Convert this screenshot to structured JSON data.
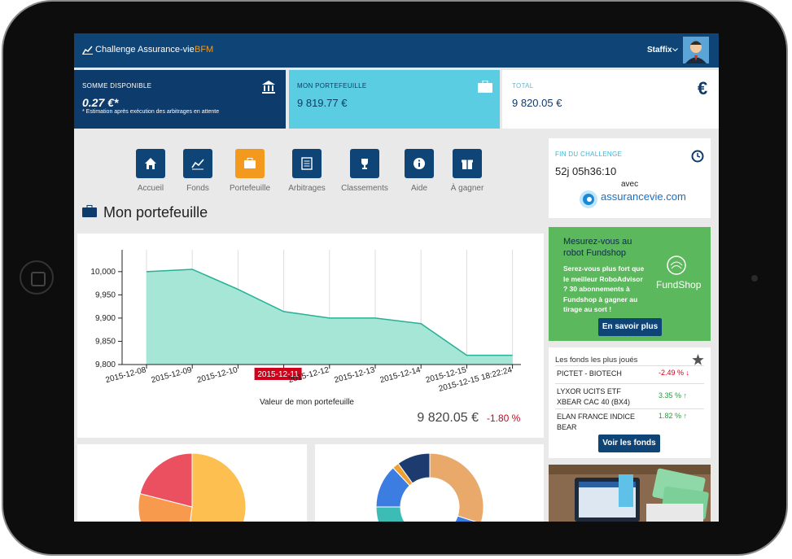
{
  "header": {
    "title": "Challenge Assurance-vie",
    "brand": "BFM",
    "user": "Staffix"
  },
  "summary": [
    {
      "label": "SOMME DISPONIBLE",
      "value": "0.27 €*",
      "note": "* Estimation après exécution des arbitrages en attente"
    },
    {
      "label": "MON PORTEFEUILLE",
      "value": "9 819.77 €"
    },
    {
      "label": "TOTAL",
      "value": "9 820.05 €",
      "symbol": "€"
    }
  ],
  "nav": [
    "Accueil",
    "Fonds",
    "Portefeuille",
    "Arbitrages",
    "Classements",
    "Aide",
    "À gagner"
  ],
  "section_title": "Mon portefeuille",
  "portfolio_chart": {
    "type": "area",
    "categories": [
      "2015-12-08",
      "2015-12-09",
      "2015-12-10",
      "2015-12-11",
      "2015-12-12",
      "2015-12-13",
      "2015-12-14",
      "2015-12-15",
      "2015-12-15 18:22:24"
    ],
    "values": [
      10000,
      10005,
      9962,
      9914,
      9900,
      9900,
      9888,
      9820,
      9820
    ],
    "ylim": [
      9800,
      10040
    ],
    "yticks": [
      {
        "value": 9800,
        "label": "9,800"
      },
      {
        "value": 9850,
        "label": "9,850"
      },
      {
        "value": 9900,
        "label": "9,900"
      },
      {
        "value": 9950,
        "label": "9,950"
      },
      {
        "value": 10000,
        "label": "10,000"
      }
    ],
    "highlight": 3,
    "color": "#a6e6d6",
    "line_color": "#26b096",
    "caption": "Valeur de mon portefeuille",
    "total": "9 820.05 €",
    "change": "-1.80 %"
  },
  "pie_charts": [
    {
      "type": "pie",
      "values": [
        52,
        27,
        21
      ],
      "colors": [
        "#fdbf4f",
        "#f79a4d",
        "#ea5060"
      ]
    },
    {
      "type": "donut",
      "values": [
        30,
        12,
        33,
        13,
        2,
        10
      ],
      "colors": [
        "#e8a96b",
        "#3b7de0",
        "#3dbcb6",
        "#3b7de0",
        "#f0a030",
        "#1d3b6e"
      ]
    }
  ],
  "sidebar": {
    "countdown": {
      "label": "FIN DU CHALLENGE",
      "value": "52j 05h36:10",
      "with": "avec",
      "partner": "assurancevie.com"
    },
    "promo": {
      "title": "Mesurez-vous au robot Fundshop",
      "text": "Serez-vous plus fort que le meilleur RoboAdvisor ? 30 abonnements à Fundshop à gagner au tirage au sort !",
      "logo": "FundShop",
      "button": "En savoir plus"
    },
    "funds": {
      "title": "Les fonds les plus joués",
      "rows": [
        {
          "name": "PICTET - BIOTECH",
          "change": "-2.49 % ↓"
        },
        {
          "name": "LYXOR UCITS ETF XBEAR CAC 40 (BX4)",
          "change": "3.35 % ↑"
        },
        {
          "name": "ELAN FRANCE INDICE BEAR",
          "change": "1.82 % ↑"
        }
      ],
      "button": "Voir les fonds"
    }
  }
}
